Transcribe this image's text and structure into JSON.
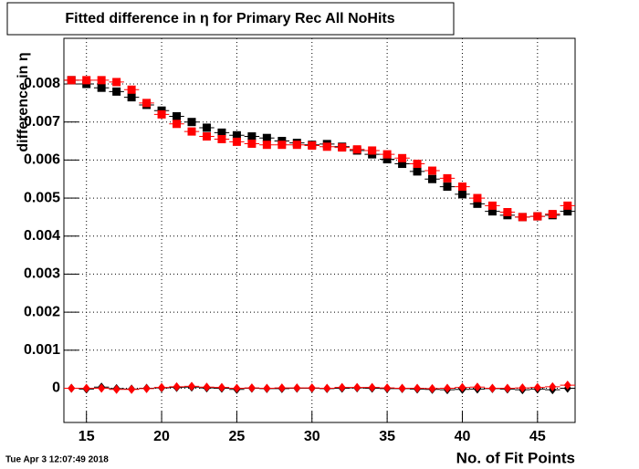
{
  "chart_data": {
    "type": "scatter",
    "title": "Fitted difference in  η for Primary Rec All NoHits",
    "x_label": "No. of Fit Points",
    "y_label": "difference in  η",
    "timestamp": "Tue Apr  3 12:07:49 2018",
    "x": [
      14,
      15,
      16,
      17,
      18,
      19,
      20,
      21,
      22,
      23,
      24,
      25,
      26,
      27,
      28,
      29,
      30,
      31,
      32,
      33,
      34,
      35,
      36,
      37,
      38,
      39,
      40,
      41,
      42,
      43,
      44,
      45,
      46,
      47
    ],
    "series": [
      {
        "color": "#000000",
        "marker": "square",
        "values": [
          0.0081,
          0.008,
          0.0079,
          0.0078,
          0.00765,
          0.00745,
          0.0073,
          0.00715,
          0.007,
          0.00685,
          0.00672,
          0.00665,
          0.00662,
          0.00658,
          0.0065,
          0.00645,
          0.0064,
          0.00642,
          0.00635,
          0.00625,
          0.00615,
          0.00602,
          0.0059,
          0.0057,
          0.0055,
          0.0053,
          0.0051,
          0.00485,
          0.00465,
          0.00455,
          0.0045,
          0.00452,
          0.00455,
          0.00465
        ]
      },
      {
        "color": "#ff0000",
        "marker": "square",
        "values": [
          0.0081,
          0.0081,
          0.0081,
          0.00805,
          0.00785,
          0.0075,
          0.0072,
          0.00695,
          0.00675,
          0.00662,
          0.00655,
          0.00648,
          0.00643,
          0.0064,
          0.0064,
          0.0064,
          0.00638,
          0.00635,
          0.00633,
          0.00628,
          0.00625,
          0.00615,
          0.00605,
          0.0059,
          0.00572,
          0.00552,
          0.0053,
          0.005,
          0.0048,
          0.00463,
          0.0045,
          0.00452,
          0.00458,
          0.0048
        ]
      },
      {
        "color": "#000000",
        "marker": "diamond",
        "values": [
          0.0,
          -2e-05,
          3e-05,
          -1e-05,
          -2e-05,
          0.0,
          1e-05,
          2e-05,
          3e-05,
          1e-05,
          0.0,
          -3e-05,
          0.0,
          -1e-05,
          -1e-05,
          0.0,
          0.0,
          -1e-05,
          0.0,
          1e-05,
          0.0,
          -1e-05,
          -1e-05,
          -2e-05,
          -3e-05,
          -4e-05,
          -3e-05,
          -2e-05,
          -1e-05,
          -2e-05,
          -4e-05,
          -2e-05,
          -4e-05,
          0.0
        ]
      },
      {
        "color": "#ff0000",
        "marker": "diamond",
        "values": [
          0.0,
          0.0,
          0.0,
          -3e-05,
          -3e-05,
          -1e-05,
          2e-05,
          4e-05,
          5e-05,
          3e-05,
          2e-05,
          0.0,
          1e-05,
          0.0,
          1e-05,
          1e-05,
          1e-05,
          0.0,
          2e-05,
          2e-05,
          2e-05,
          1e-05,
          0.0,
          0.0,
          -1e-05,
          0.0,
          2e-05,
          3e-05,
          0.0,
          0.0,
          1e-05,
          2e-05,
          4e-05,
          8e-05
        ]
      }
    ],
    "xlim": [
      13.5,
      47.5
    ],
    "xticks": [
      15,
      20,
      25,
      30,
      35,
      40,
      45
    ],
    "ylim": [
      -0.0009,
      0.0092
    ],
    "yticks": [
      0,
      0.001,
      0.002,
      0.003,
      0.004,
      0.005,
      0.006,
      0.007,
      0.008
    ],
    "grid": true
  }
}
